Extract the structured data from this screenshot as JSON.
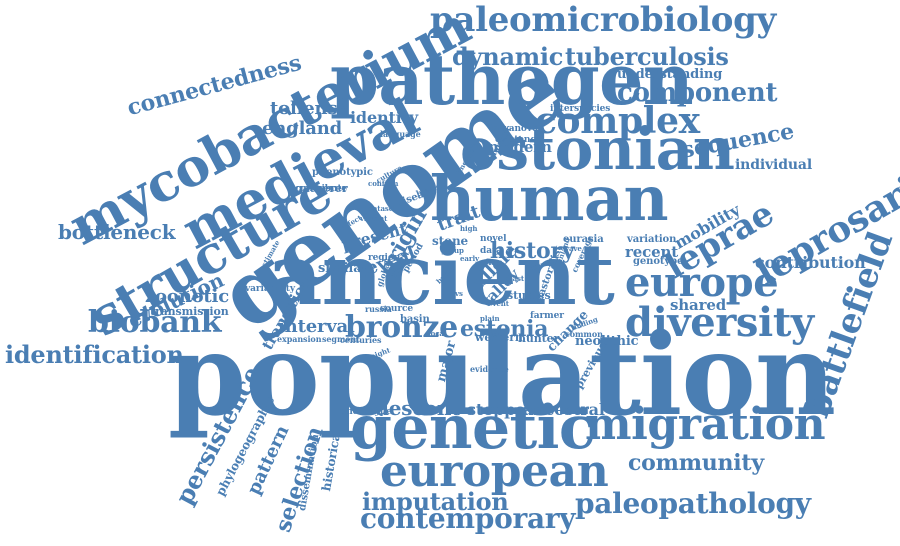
{
  "colors": {
    "word": "#4a7eb3",
    "background": "#ffffff"
  },
  "words": [
    {
      "text": "population"
    },
    {
      "text": "ancient"
    },
    {
      "text": "genome"
    },
    {
      "text": "pathogen"
    },
    {
      "text": "human"
    },
    {
      "text": "estonian"
    },
    {
      "text": "genetic"
    },
    {
      "text": "mycobacterium"
    },
    {
      "text": "medieval"
    },
    {
      "text": "structure"
    },
    {
      "text": "european"
    },
    {
      "text": "migration"
    },
    {
      "text": "europe"
    },
    {
      "text": "diversity"
    },
    {
      "text": "paleomicrobiology"
    },
    {
      "text": "leprosaria"
    },
    {
      "text": "complex"
    },
    {
      "text": "battlefield"
    },
    {
      "text": "leprae"
    },
    {
      "text": "paleopathology"
    },
    {
      "text": "contemporary"
    },
    {
      "text": "bronze"
    },
    {
      "text": "biobank"
    },
    {
      "text": "tuberculosis"
    },
    {
      "text": "dynamic"
    },
    {
      "text": "component"
    },
    {
      "text": "connectedness"
    },
    {
      "text": "identification"
    },
    {
      "text": "imputation"
    },
    {
      "text": "persistence"
    },
    {
      "text": "selection"
    },
    {
      "text": "community"
    },
    {
      "text": "sequence"
    },
    {
      "text": "evolution"
    },
    {
      "text": "history"
    },
    {
      "text": "estonia"
    },
    {
      "text": "descent"
    },
    {
      "text": "contribution"
    },
    {
      "text": "bottleneck"
    },
    {
      "text": "zoonotic"
    },
    {
      "text": "interval"
    },
    {
      "text": "england"
    },
    {
      "text": "tollense"
    },
    {
      "text": "identity"
    },
    {
      "text": "modern"
    },
    {
      "text": "understanding"
    },
    {
      "text": "individual"
    },
    {
      "text": "mobility"
    },
    {
      "text": "pattern"
    },
    {
      "text": "steppe"
    },
    {
      "text": "ancestral"
    },
    {
      "text": "shared"
    },
    {
      "text": "recent"
    },
    {
      "text": "trait"
    },
    {
      "text": "present"
    },
    {
      "text": "origin"
    },
    {
      "text": "reveal"
    },
    {
      "text": "similar"
    },
    {
      "text": "transition"
    },
    {
      "text": "allele"
    },
    {
      "text": "valley"
    },
    {
      "text": "gatherer"
    },
    {
      "text": "phenotypic"
    },
    {
      "text": "transmission"
    },
    {
      "text": "variability"
    },
    {
      "text": "phylogeographic"
    },
    {
      "text": "dissemination"
    },
    {
      "text": "historical"
    },
    {
      "text": "stone"
    },
    {
      "text": "eurasia"
    },
    {
      "text": "genotype"
    },
    {
      "text": "variation"
    },
    {
      "text": "neolithic"
    },
    {
      "text": "previous"
    },
    {
      "text": "studies"
    },
    {
      "text": "change"
    },
    {
      "text": "major"
    },
    {
      "text": "western"
    },
    {
      "text": "hunter"
    },
    {
      "text": "basin"
    },
    {
      "text": "source"
    },
    {
      "text": "russia"
    },
    {
      "text": "fatyanovo"
    },
    {
      "text": "existence"
    },
    {
      "text": "interspecies"
    },
    {
      "text": "linguistic"
    },
    {
      "text": "lineage"
    },
    {
      "text": "language"
    },
    {
      "text": "contribute"
    },
    {
      "text": "dataset"
    },
    {
      "text": "disease"
    },
    {
      "text": "novel"
    },
    {
      "text": "data"
    },
    {
      "text": "region"
    },
    {
      "text": "finn"
    },
    {
      "text": "expansion"
    },
    {
      "text": "segment"
    },
    {
      "text": "evidence"
    },
    {
      "text": "pastoralist"
    },
    {
      "text": "farmer"
    },
    {
      "text": "finding"
    },
    {
      "text": "common"
    },
    {
      "text": "coverage"
    },
    {
      "text": "centuries"
    },
    {
      "text": "estimate"
    },
    {
      "text": "phenotype"
    },
    {
      "text": "global"
    },
    {
      "text": "result"
    },
    {
      "text": "period"
    },
    {
      "text": "culture"
    },
    {
      "text": "branch"
    },
    {
      "text": "event"
    },
    {
      "text": "group"
    },
    {
      "text": "plain"
    },
    {
      "text": "height"
    },
    {
      "text": "year"
    },
    {
      "text": "last"
    },
    {
      "text": "variant"
    },
    {
      "text": "mixed"
    },
    {
      "text": "inland"
    },
    {
      "text": "wave"
    },
    {
      "text": "local"
    },
    {
      "text": "burial"
    },
    {
      "text": "early"
    },
    {
      "text": "confirm"
    },
    {
      "text": "high"
    },
    {
      "text": "vs"
    },
    {
      "text": "affect"
    }
  ]
}
